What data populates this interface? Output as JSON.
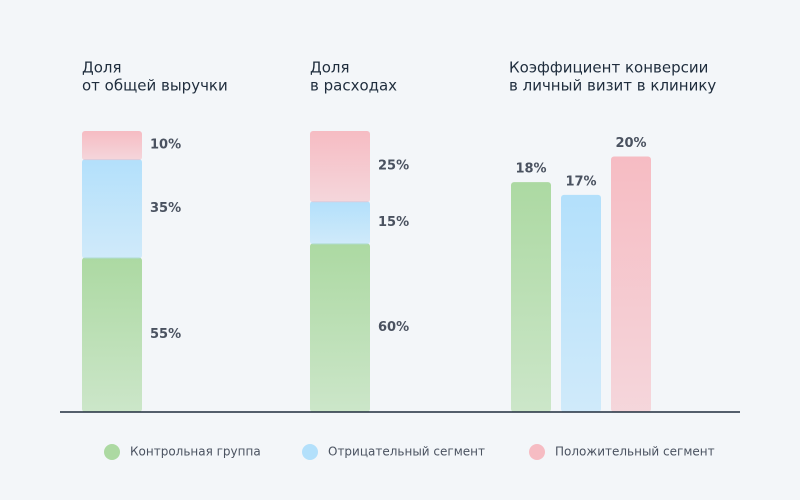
{
  "legend": {
    "items": [
      {
        "name": "Контрольная группа",
        "color": "#acd9a2"
      },
      {
        "name": "Отрицательный сегмент",
        "color": "#b3e0fb"
      },
      {
        "name": "Положительный сегмент",
        "color": "#f6bcc3"
      }
    ]
  },
  "chart_data": [
    {
      "type": "stacked",
      "title": [
        "Доля",
        "от общей выручки"
      ],
      "values": [
        55,
        35,
        10
      ],
      "value_labels": [
        "55%",
        "35%",
        "10%"
      ],
      "ylim": [
        0,
        100
      ]
    },
    {
      "type": "stacked",
      "title": [
        "Доля",
        "в расходах"
      ],
      "values": [
        60,
        15,
        25
      ],
      "value_labels": [
        "60%",
        "15%",
        "25%"
      ],
      "ylim": [
        0,
        100
      ]
    },
    {
      "type": "bar",
      "title": [
        "Коэффициент конверсии",
        "в личный визит в клинику"
      ],
      "values": [
        18,
        17,
        20
      ],
      "value_labels": [
        "18%",
        "17%",
        "20%"
      ],
      "ylim": [
        0,
        22
      ]
    }
  ]
}
